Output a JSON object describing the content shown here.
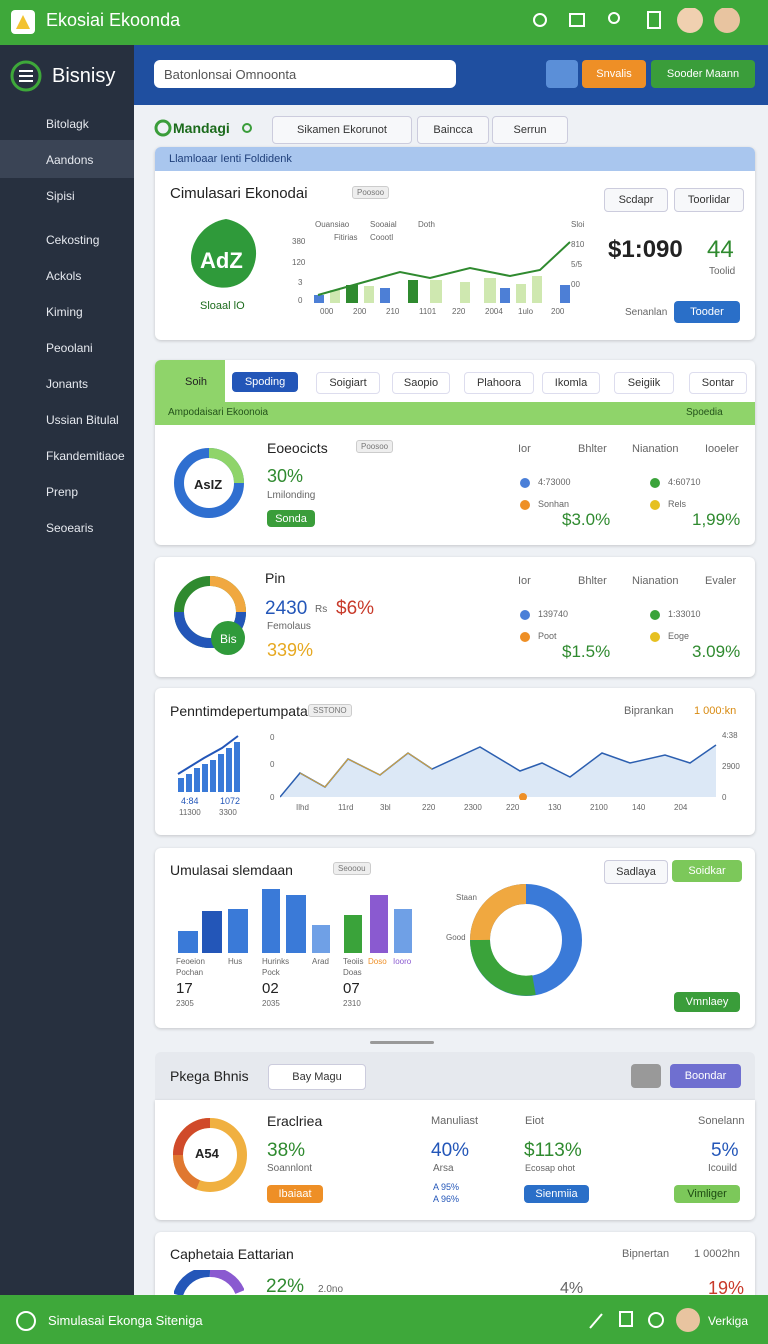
{
  "topbar": {
    "title": "Ekosiai Ekoonda"
  },
  "sidebar": {
    "brand": "Bisnisy",
    "items": [
      "Bitolagk",
      "Aandons",
      "Sipisi",
      "Cekosting",
      "Ackols",
      "Kiming",
      "Peoolani",
      "Jonants",
      "Ussian Bitulal",
      "Fkandemitiaoe",
      "Prenp",
      "Seoearis"
    ]
  },
  "header": {
    "search": "Batonlonsai Omnoonta",
    "buttons": [
      "Snvalis",
      "Sooder Maann"
    ]
  },
  "toolbar": {
    "title": "Mandagi",
    "dropdown": "Sikamen Ekorunot",
    "buttons": [
      "Baincca",
      "Serrun"
    ]
  },
  "banner": "Llamloaar Ienti Foldidenk",
  "card1": {
    "title": "Cimulasari Ekonodai",
    "badge": "Poosoo",
    "logo": "AdZ",
    "logo_caption": "Sloaal lO",
    "legend": [
      "Ouansiao",
      "Sooaial",
      "Doth",
      "Fitirias",
      "Coootl"
    ],
    "y_labels": [
      "380",
      "120",
      "3",
      "0"
    ],
    "y2_labels": [
      "Sloi",
      "810",
      "5/5",
      "00"
    ],
    "x_labels": [
      "000",
      "200",
      "210",
      "1101",
      "220",
      "2004",
      "1ulo",
      "200"
    ],
    "amount": "$1:090",
    "count": "44",
    "count_caption": "Toolid",
    "buttons": [
      "Scdapr",
      "Toorlidar"
    ],
    "footer_label": "Senanlan",
    "footer_button": "Tooder"
  },
  "tabs": {
    "items": [
      "Soih",
      "Spoding",
      "Soigiart",
      "Saopio",
      "Plahoora",
      "Ikomla",
      "Seigiik",
      "Sontar"
    ],
    "sub_left": "Ampodaisari Ekoonoia",
    "sub_right": "Spoedia"
  },
  "card2": {
    "title": "Eoeocicts",
    "badge": "Poosoo",
    "donut": "AsIZ",
    "percent": "30%",
    "caption": "Lmilonding",
    "button": "Sonda",
    "columns": [
      "Ior",
      "Bhlter",
      "Nianation",
      "Iooeler"
    ],
    "items": [
      "4:73000",
      "4:60710",
      "Sonhan",
      "Rels"
    ],
    "values": [
      "$3.0%",
      "1,99%"
    ]
  },
  "card3": {
    "title": "Pin",
    "donut": "Bis",
    "amount": "2430",
    "unit": "Rs",
    "change": "$6%",
    "caption": "Femolaus",
    "percent": "339%",
    "columns": [
      "Ior",
      "Bhlter",
      "Nianation",
      "Evaler"
    ],
    "items": [
      "139740",
      "1:33010",
      "Poot",
      "Eoge"
    ],
    "values": [
      "$1.5%",
      "3.09%"
    ]
  },
  "card4": {
    "title": "Penntimdepertumpatan",
    "badge": "SSTONO",
    "right_label": "Biprankan",
    "right_value": "1 000:kn",
    "bar_labels": [
      "4:84",
      "1072",
      "11300",
      "3300"
    ],
    "y_labels": [
      "0",
      "0",
      "0"
    ],
    "y2_labels": [
      "4:38",
      "2900",
      "0"
    ],
    "x_labels": [
      "Ilhd",
      "11rd",
      "3bl",
      "220",
      "2300",
      "220",
      "130",
      "2100",
      "140",
      "204"
    ]
  },
  "card5": {
    "title": "Umulasai slemdaan",
    "badge": "Seooou",
    "buttons": [
      "Sadlaya",
      "Soidkar"
    ],
    "groups": [
      {
        "label": "Feoeion",
        "sub": "Pochan",
        "number": "17",
        "year": "2305"
      },
      {
        "label": "Hurinks",
        "sub": "Pock",
        "number": "02",
        "year": "2035"
      },
      {
        "label": "Teoiis",
        "sub": "Doas",
        "number": "07",
        "year": "2310"
      }
    ],
    "extra_labels": [
      "Hus",
      "Arad",
      "Doso",
      "Iooro"
    ],
    "donut_labels": [
      "Staan",
      "Good"
    ],
    "button": "Vmnlaey"
  },
  "section": {
    "title": "Pkega Bhnis",
    "dropdown": "Bay Magu",
    "button": "Boondar"
  },
  "card6": {
    "title": "Eraclriea",
    "donut": "A54",
    "percent": "38%",
    "caption": "Soannlont",
    "button": "Ibaiaat",
    "col2": {
      "label": "Manuliast",
      "value": "40%",
      "caption": "Arsa",
      "trend": [
        "A 95%",
        "A 96%"
      ]
    },
    "col3": {
      "label": "Eiot",
      "value": "$113%",
      "caption": "Ecosap ohot",
      "button": "Sienmiia"
    },
    "col4": {
      "label": "Sonelann",
      "value": "5%",
      "caption": "Icouild",
      "button": "Vimliger"
    }
  },
  "card7": {
    "title": "Caphetaia Eattarian",
    "right_label": "Bipnertan",
    "right_value": "1 0002hn",
    "values": [
      "22%",
      "2.0no",
      "4%",
      "19%"
    ]
  },
  "bottombar": {
    "title": "Simulasai Ekonga Siteniga",
    "user": "Verkiga"
  }
}
